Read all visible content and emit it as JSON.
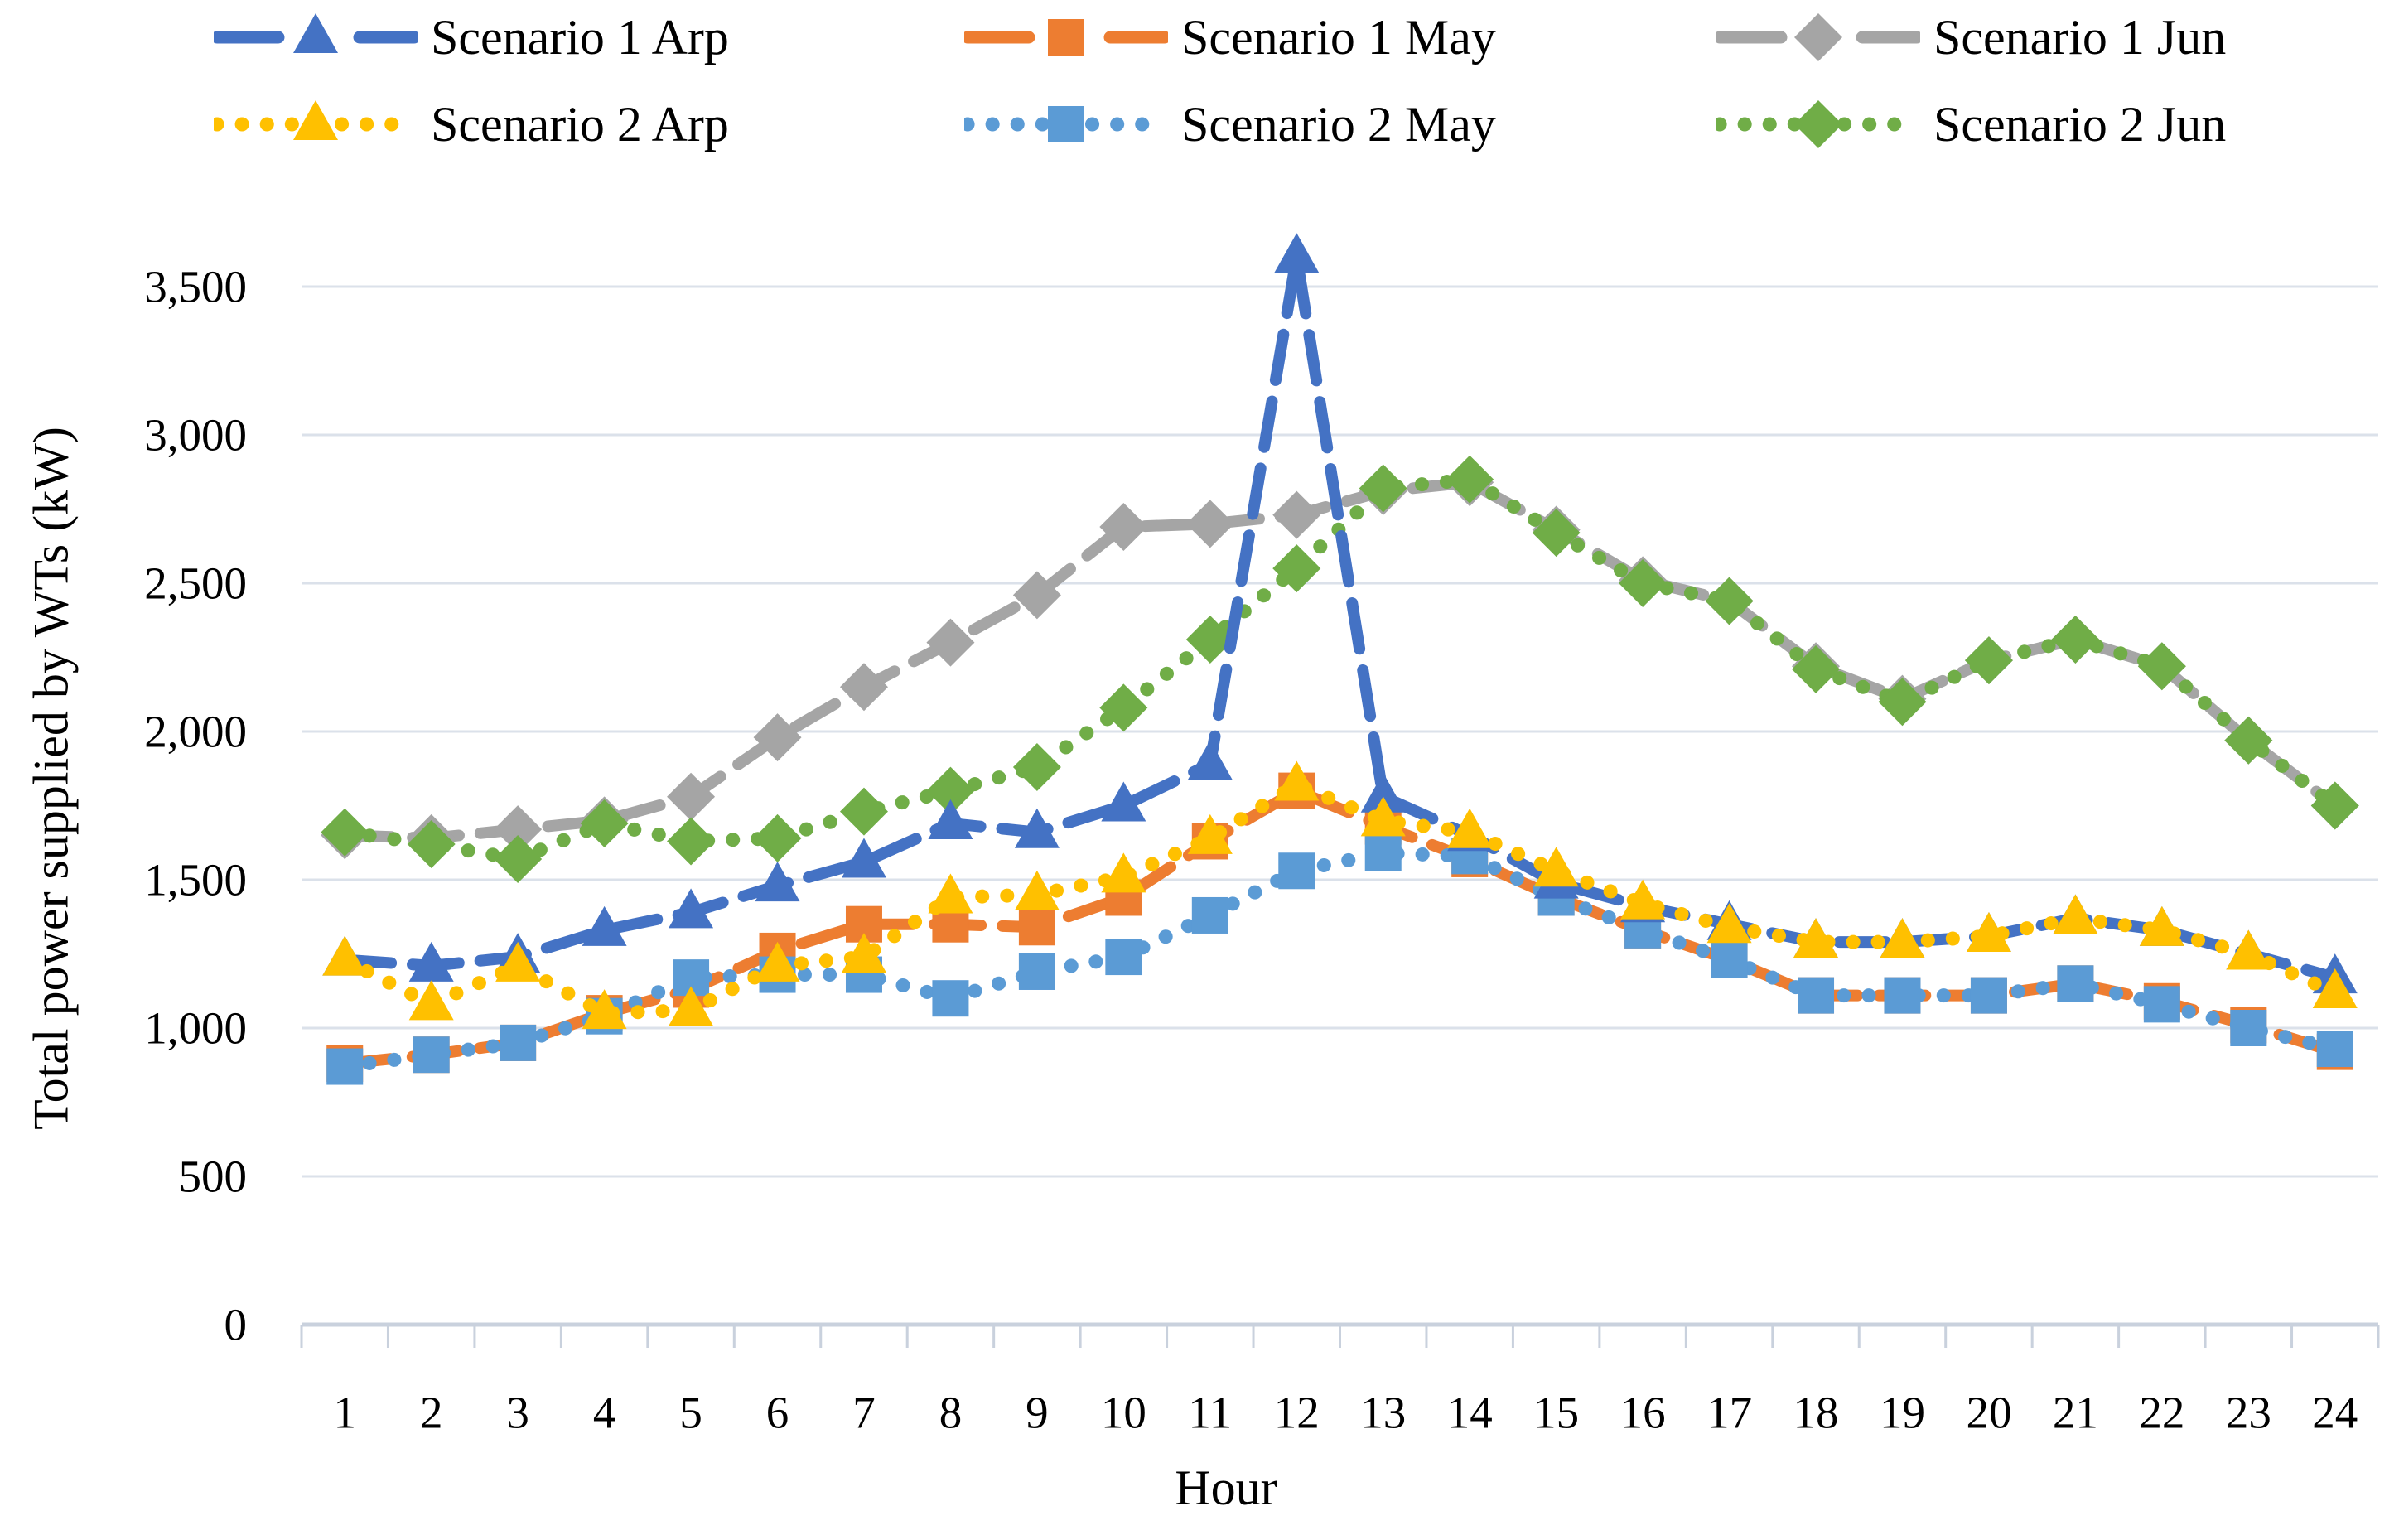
{
  "figure": {
    "background": "#ffffff",
    "text_color": "#000000"
  },
  "chart_data": {
    "type": "line",
    "title": "",
    "xlabel": "Hour",
    "ylabel": "Total power supplied by WTs (kW)",
    "x_categories": [
      1,
      2,
      3,
      4,
      5,
      6,
      7,
      8,
      9,
      10,
      11,
      12,
      13,
      14,
      15,
      16,
      17,
      18,
      19,
      20,
      21,
      22,
      23,
      24
    ],
    "y_tick_labels": [
      "0",
      "500",
      "1,000",
      "1,500",
      "2,000",
      "2,500",
      "3,000",
      "3,500"
    ],
    "y_tick_values": [
      0,
      500,
      1000,
      1500,
      2000,
      2500,
      3000,
      3500
    ],
    "ylim": [
      0,
      3500
    ],
    "grid": "horizontal",
    "gridline_color": "#dbe1ea",
    "axis_line_color": "#c9d1dd",
    "legend_position": "top",
    "visual_note": "Scenario 1 Arp rises off-scale at hour 12 (drawn as dashed arrow peaking ~3,600 kW above the 3,500 gridline)",
    "series": [
      {
        "name": "Scenario 1 Arp",
        "color": "#4472C4",
        "marker": "triangle",
        "line": "dashed",
        "values": [
          1230,
          1210,
          1240,
          1330,
          1390,
          1480,
          1560,
          1690,
          1660,
          1750,
          1890,
          3600,
          1780,
          1650,
          1490,
          1410,
          1350,
          1290,
          1290,
          1310,
          1370,
          1330,
          1250,
          1170
        ]
      },
      {
        "name": "Scenario 1 May",
        "color": "#ED7D31",
        "marker": "square",
        "line": "dashed",
        "values": [
          880,
          910,
          950,
          1050,
          1130,
          1260,
          1350,
          1350,
          1340,
          1440,
          1630,
          1800,
          1680,
          1570,
          1440,
          1330,
          1230,
          1110,
          1110,
          1110,
          1150,
          1090,
          1010,
          920
        ]
      },
      {
        "name": "Scenario 1 Jun",
        "color": "#A5A5A5",
        "marker": "diamond",
        "line": "dashed",
        "values": [
          1650,
          1640,
          1670,
          1700,
          1780,
          1980,
          2150,
          2300,
          2460,
          2690,
          2700,
          2730,
          2810,
          2840,
          2680,
          2510,
          2440,
          2220,
          2110,
          2240,
          2310,
          2220,
          1970,
          1750
        ]
      },
      {
        "name": "Scenario 2 Arp",
        "color": "#FFC000",
        "marker": "triangle",
        "line": "dotted",
        "values": [
          1230,
          1080,
          1210,
          1050,
          1060,
          1210,
          1240,
          1440,
          1450,
          1510,
          1640,
          1820,
          1700,
          1660,
          1530,
          1420,
          1340,
          1290,
          1290,
          1310,
          1370,
          1330,
          1250,
          1120
        ]
      },
      {
        "name": "Scenario 2 May",
        "color": "#5B9BD5",
        "marker": "square",
        "line": "dotted",
        "values": [
          870,
          910,
          950,
          1040,
          1170,
          1180,
          1180,
          1100,
          1190,
          1240,
          1380,
          1530,
          1590,
          1580,
          1440,
          1330,
          1230,
          1110,
          1110,
          1110,
          1150,
          1080,
          1000,
          930
        ]
      },
      {
        "name": "Scenario 2 Jun",
        "color": "#70AD47",
        "marker": "diamond",
        "line": "dotted",
        "values": [
          1660,
          1620,
          1570,
          1690,
          1630,
          1640,
          1730,
          1800,
          1880,
          2080,
          2310,
          2550,
          2820,
          2850,
          2670,
          2500,
          2440,
          2210,
          2100,
          2240,
          2310,
          2220,
          1970,
          1750
        ]
      }
    ]
  }
}
